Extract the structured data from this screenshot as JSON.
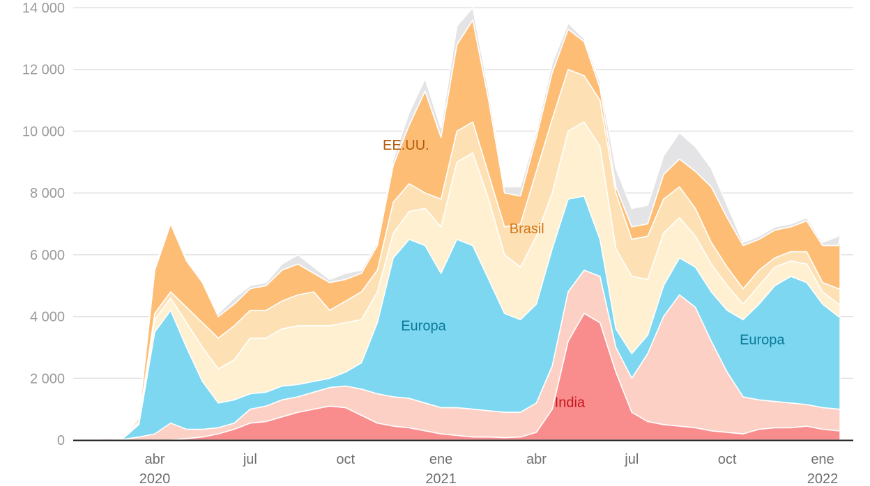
{
  "chart_data": {
    "type": "area",
    "stacked": true,
    "title": "",
    "xlabel": "",
    "ylabel": "",
    "ylim": [
      0,
      14000
    ],
    "xlim_months_since_2020_01": [
      0.5,
      24.55
    ],
    "grid": true,
    "y_ticks": [
      {
        "value": 0,
        "label": "0"
      },
      {
        "value": 2000,
        "label": "2 000"
      },
      {
        "value": 4000,
        "label": "4 000"
      },
      {
        "value": 6000,
        "label": "6 000"
      },
      {
        "value": 8000,
        "label": "8 000"
      },
      {
        "value": 10000,
        "label": "10 000"
      },
      {
        "value": 12000,
        "label": "12 000"
      },
      {
        "value": 14000,
        "label": "14 000"
      }
    ],
    "x_ticks": [
      {
        "month": 3,
        "label": "abr",
        "year": "2020"
      },
      {
        "month": 6,
        "label": "jul",
        "year": ""
      },
      {
        "month": 9,
        "label": "oct",
        "year": ""
      },
      {
        "month": 12,
        "label": "ene",
        "year": "2021"
      },
      {
        "month": 15,
        "label": "abr",
        "year": ""
      },
      {
        "month": 18,
        "label": "jul",
        "year": ""
      },
      {
        "month": 21,
        "label": "oct",
        "year": ""
      },
      {
        "month": 24,
        "label": "ene",
        "year": "2022"
      }
    ],
    "x": [
      0.5,
      1,
      1.5,
      2,
      2.5,
      3,
      3.5,
      4,
      4.5,
      5,
      5.5,
      6,
      6.5,
      7,
      7.5,
      8,
      8.5,
      9,
      9.5,
      10,
      10.5,
      11,
      11.5,
      12,
      12.5,
      13,
      13.5,
      14,
      14.5,
      15,
      15.5,
      16,
      16.5,
      17,
      17.5,
      18,
      18.5,
      19,
      19.5,
      20,
      20.5,
      21,
      21.5,
      22,
      22.5,
      23,
      23.5,
      24,
      24.5,
      24.55
    ],
    "series": [
      {
        "key": "india",
        "color": "#f98d8d",
        "values": [
          0,
          0,
          0,
          0,
          0,
          0,
          0,
          50,
          100,
          200,
          350,
          550,
          600,
          750,
          900,
          1000,
          1100,
          1050,
          800,
          550,
          450,
          400,
          300,
          200,
          150,
          100,
          100,
          80,
          100,
          250,
          1000,
          3200,
          4100,
          3800,
          2200,
          900,
          600,
          500,
          450,
          400,
          300,
          250,
          200,
          350,
          400,
          400,
          450,
          350,
          300,
          300
        ]
      },
      {
        "key": "asia",
        "color": "#fcd0c4",
        "values": [
          0,
          20,
          50,
          20,
          100,
          200,
          550,
          300,
          250,
          200,
          200,
          450,
          500,
          550,
          500,
          550,
          600,
          700,
          850,
          950,
          950,
          950,
          900,
          850,
          900,
          900,
          850,
          820,
          800,
          950,
          1400,
          1600,
          1400,
          1500,
          800,
          1100,
          2200,
          3500,
          4250,
          3900,
          2900,
          1950,
          1200,
          950,
          850,
          800,
          700,
          700,
          700,
          700
        ]
      },
      {
        "key": "europa",
        "color": "#7dd7f0",
        "values": [
          0,
          0,
          0,
          30,
          400,
          3300,
          3650,
          2650,
          1550,
          800,
          750,
          500,
          450,
          450,
          400,
          350,
          300,
          450,
          850,
          2300,
          4500,
          5150,
          5100,
          4350,
          5450,
          5300,
          4250,
          3200,
          3000,
          3200,
          3800,
          3000,
          2400,
          1200,
          600,
          800,
          600,
          1000,
          1200,
          1300,
          1600,
          2000,
          2500,
          3100,
          3750,
          4100,
          3950,
          3350,
          3000,
          3000
        ]
      },
      {
        "key": "layer4",
        "color": "#fef0d0",
        "values": [
          0,
          0,
          0,
          0,
          50,
          400,
          400,
          800,
          1100,
          1100,
          1300,
          1800,
          1750,
          1850,
          1900,
          1800,
          1700,
          1600,
          1400,
          1000,
          800,
          900,
          1200,
          1500,
          2500,
          3000,
          2600,
          1900,
          1700,
          2200,
          1800,
          2200,
          2400,
          3000,
          2600,
          2500,
          1800,
          1700,
          1300,
          1000,
          900,
          800,
          500,
          600,
          600,
          500,
          600,
          400,
          400,
          400
        ]
      },
      {
        "key": "brasil",
        "color": "#fde1b5",
        "values": [
          0,
          0,
          0,
          0,
          50,
          200,
          200,
          500,
          800,
          1000,
          1100,
          900,
          900,
          900,
          1000,
          1100,
          500,
          700,
          900,
          700,
          1000,
          900,
          500,
          900,
          1000,
          1000,
          800,
          900,
          1400,
          2100,
          2400,
          2000,
          1500,
          1500,
          1800,
          1200,
          1400,
          1100,
          1000,
          900,
          700,
          600,
          500,
          500,
          300,
          300,
          400,
          300,
          500,
          500
        ]
      },
      {
        "key": "eeuu",
        "color": "#fdbd75",
        "values": [
          0,
          10,
          10,
          10,
          100,
          1400,
          2200,
          1500,
          1300,
          700,
          700,
          700,
          800,
          1000,
          1000,
          600,
          900,
          700,
          600,
          800,
          1200,
          1900,
          3300,
          2000,
          2800,
          3300,
          2400,
          1100,
          900,
          1100,
          1500,
          1300,
          1100,
          400,
          200,
          400,
          400,
          800,
          900,
          1200,
          1800,
          1600,
          1400,
          1000,
          900,
          800,
          1000,
          1200,
          1400,
          1700
        ]
      },
      {
        "key": "resto",
        "color": "#e4e4e6",
        "values": [
          0,
          0,
          0,
          0,
          50,
          100,
          50,
          50,
          50,
          100,
          200,
          100,
          100,
          200,
          300,
          200,
          100,
          200,
          100,
          100,
          200,
          400,
          400,
          300,
          600,
          400,
          300,
          200,
          300,
          200,
          300,
          200,
          100,
          200,
          600,
          600,
          600,
          600,
          850,
          800,
          600,
          400,
          100,
          100,
          100,
          100,
          100,
          100,
          300,
          300
        ]
      }
    ],
    "annotations": [
      {
        "text": "EE.UU.",
        "month": 10.9,
        "value": 9400,
        "color": "#b65a0c"
      },
      {
        "text": "Brasil",
        "month": 14.7,
        "value": 6700,
        "color": "#d27718"
      },
      {
        "text": "Europa",
        "month": 11.45,
        "value": 3550,
        "color": "#0b7a9a"
      },
      {
        "text": "Europa",
        "month": 22.1,
        "value": 3100,
        "color": "#0b7a9a"
      },
      {
        "text": "India",
        "month": 16.05,
        "value": 1070,
        "color": "#c4161c"
      }
    ]
  }
}
